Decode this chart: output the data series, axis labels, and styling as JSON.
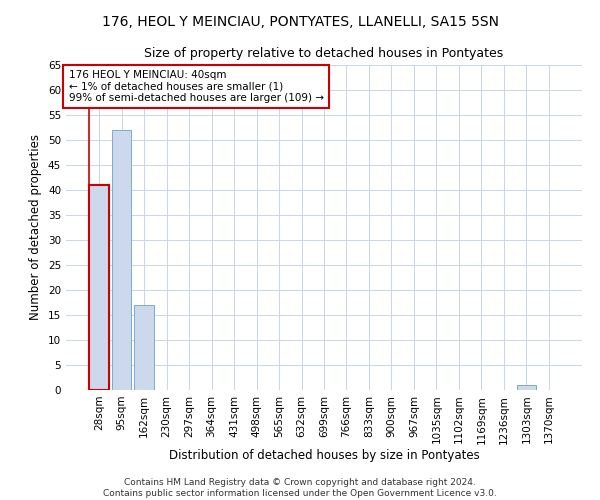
{
  "title": "176, HEOL Y MEINCIAU, PONTYATES, LLANELLI, SA15 5SN",
  "subtitle": "Size of property relative to detached houses in Pontyates",
  "xlabel": "Distribution of detached houses by size in Pontyates",
  "ylabel": "Number of detached properties",
  "categories": [
    "28sqm",
    "95sqm",
    "162sqm",
    "230sqm",
    "297sqm",
    "364sqm",
    "431sqm",
    "498sqm",
    "565sqm",
    "632sqm",
    "699sqm",
    "766sqm",
    "833sqm",
    "900sqm",
    "967sqm",
    "1035sqm",
    "1102sqm",
    "1169sqm",
    "1236sqm",
    "1303sqm",
    "1370sqm"
  ],
  "values": [
    41,
    52,
    17,
    0,
    0,
    0,
    0,
    0,
    0,
    0,
    0,
    0,
    0,
    0,
    0,
    0,
    0,
    0,
    0,
    1,
    0
  ],
  "bar_color": "#ccd9ed",
  "bar_edge_color": "#7aabcc",
  "highlight_bar_index": 0,
  "highlight_edge_color": "#cc0000",
  "annotation_text": "176 HEOL Y MEINCIAU: 40sqm\n← 1% of detached houses are smaller (1)\n99% of semi-detached houses are larger (109) →",
  "annotation_box_color": "#ffffff",
  "annotation_box_edge_color": "#cc0000",
  "vline_color": "#cc0000",
  "ylim": [
    0,
    65
  ],
  "yticks": [
    0,
    5,
    10,
    15,
    20,
    25,
    30,
    35,
    40,
    45,
    50,
    55,
    60,
    65
  ],
  "background_color": "#ffffff",
  "grid_color": "#c8d4e8",
  "footer_text": "Contains HM Land Registry data © Crown copyright and database right 2024.\nContains public sector information licensed under the Open Government Licence v3.0.",
  "title_fontsize": 10,
  "subtitle_fontsize": 9,
  "label_fontsize": 8.5,
  "tick_fontsize": 7.5,
  "annotation_fontsize": 7.5,
  "footer_fontsize": 6.5
}
